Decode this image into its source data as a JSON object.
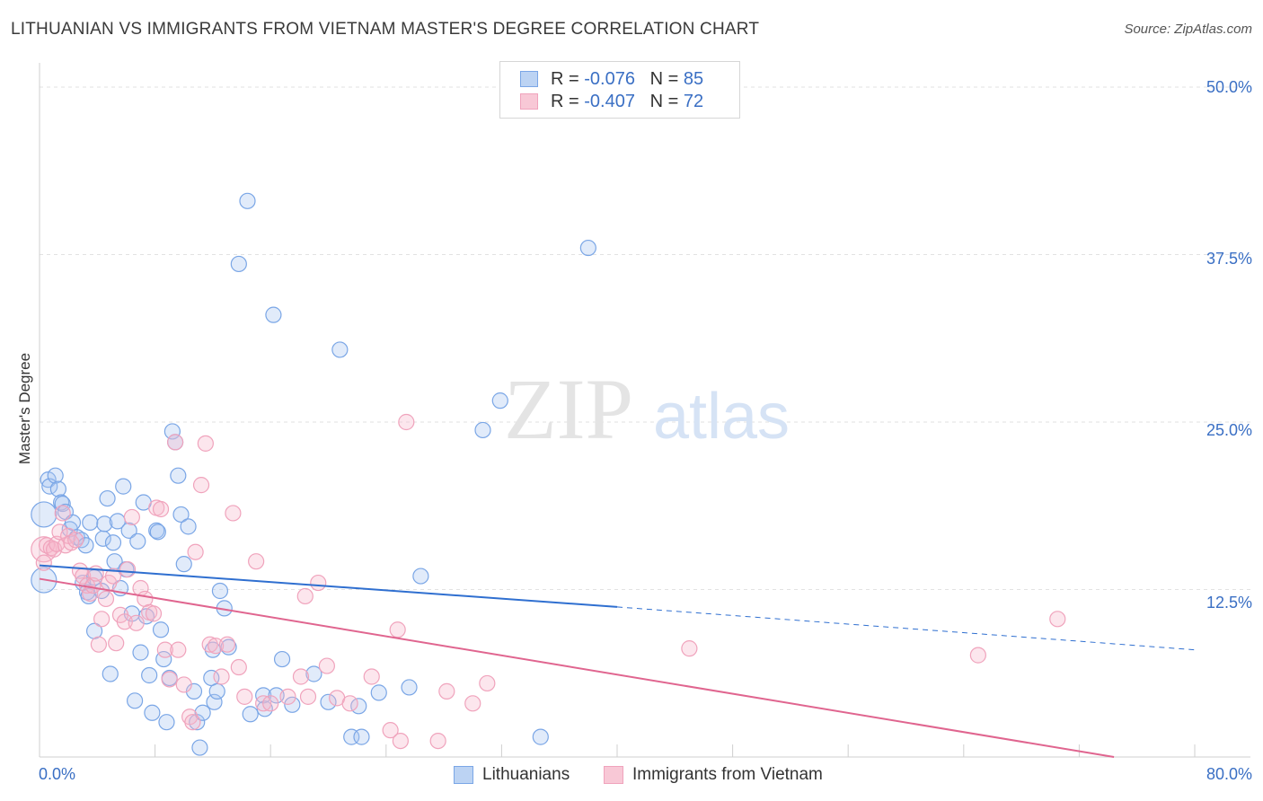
{
  "title": "LITHUANIAN VS IMMIGRANTS FROM VIETNAM MASTER'S DEGREE CORRELATION CHART",
  "source": "Source: ZipAtlas.com",
  "watermark": {
    "zip": "ZIP",
    "atlas": "atlas"
  },
  "legend_top": {
    "row1": {
      "r_label": "R = ",
      "r_value": "-0.076",
      "n_label": "N = ",
      "n_value": "85"
    },
    "row2": {
      "r_label": "R = ",
      "r_value": "-0.407",
      "n_label": "N = ",
      "n_value": "72"
    }
  },
  "chart_data": {
    "type": "scatter",
    "title": "LITHUANIAN VS IMMIGRANTS FROM VIETNAM MASTER'S DEGREE CORRELATION CHART",
    "xlabel": "",
    "ylabel": "Master's Degree",
    "xlim": [
      0,
      80
    ],
    "ylim": [
      0,
      52
    ],
    "x_tick_labels": {
      "min": "0.0%",
      "max": "80.0%"
    },
    "y_ticks": [
      {
        "value": 12.5,
        "label": "12.5%"
      },
      {
        "value": 25.0,
        "label": "25.0%"
      },
      {
        "value": 37.5,
        "label": "37.5%"
      },
      {
        "value": 50.0,
        "label": "50.0%"
      }
    ],
    "grid": true,
    "colors": {
      "blue": "#7aa6e6",
      "blue_line": "#2f6fd0",
      "pink": "#f0a3bc",
      "pink_line": "#e0658f"
    },
    "series": [
      {
        "name": "Lithuanians",
        "color": "#7aa6e6",
        "trend": {
          "x": [
            0,
            40
          ],
          "y": [
            14.3,
            11.2
          ],
          "dashed_x": [
            40,
            80
          ],
          "dashed_y": [
            11.2,
            8.0
          ]
        },
        "points": [
          [
            0.3,
            18.1,
            2
          ],
          [
            0.3,
            13.2,
            2
          ],
          [
            0.6,
            20.7,
            1
          ],
          [
            0.7,
            20.2,
            1
          ],
          [
            1.1,
            21.0,
            1
          ],
          [
            1.3,
            20.0,
            1
          ],
          [
            1.5,
            19.0,
            1
          ],
          [
            1.6,
            18.9,
            1
          ],
          [
            1.8,
            18.3,
            1
          ],
          [
            2.1,
            17.0,
            1
          ],
          [
            2.3,
            17.5,
            1
          ],
          [
            2.6,
            16.4,
            1
          ],
          [
            2.9,
            16.2,
            1
          ],
          [
            3.0,
            13.0,
            1
          ],
          [
            3.2,
            15.8,
            1
          ],
          [
            3.3,
            12.3,
            1
          ],
          [
            3.4,
            12.0,
            1
          ],
          [
            3.5,
            17.5,
            1
          ],
          [
            3.8,
            13.4,
            1
          ],
          [
            3.8,
            9.4,
            1
          ],
          [
            4.3,
            12.4,
            1
          ],
          [
            4.4,
            16.3,
            1
          ],
          [
            4.5,
            17.4,
            1
          ],
          [
            4.7,
            19.3,
            1
          ],
          [
            4.9,
            6.2,
            1
          ],
          [
            5.1,
            16.0,
            1
          ],
          [
            5.2,
            14.6,
            1
          ],
          [
            5.4,
            17.6,
            1
          ],
          [
            5.6,
            12.6,
            1
          ],
          [
            5.8,
            20.2,
            1
          ],
          [
            6.0,
            14.0,
            1
          ],
          [
            6.2,
            16.9,
            1
          ],
          [
            6.4,
            10.7,
            1
          ],
          [
            6.6,
            4.2,
            1
          ],
          [
            6.8,
            16.1,
            1
          ],
          [
            7.0,
            7.8,
            1
          ],
          [
            7.2,
            19.0,
            1
          ],
          [
            7.4,
            10.5,
            1
          ],
          [
            7.6,
            6.1,
            1
          ],
          [
            7.8,
            3.3,
            1
          ],
          [
            8.1,
            16.9,
            1
          ],
          [
            8.2,
            16.8,
            1
          ],
          [
            8.4,
            9.5,
            1
          ],
          [
            8.6,
            7.3,
            1
          ],
          [
            8.8,
            2.6,
            1
          ],
          [
            9.0,
            5.9,
            1
          ],
          [
            9.2,
            24.3,
            1
          ],
          [
            9.4,
            23.5,
            1
          ],
          [
            9.6,
            21.0,
            1
          ],
          [
            9.8,
            18.1,
            1
          ],
          [
            10.0,
            14.4,
            1
          ],
          [
            10.3,
            17.2,
            1
          ],
          [
            10.7,
            4.9,
            1
          ],
          [
            10.9,
            2.6,
            1
          ],
          [
            11.1,
            0.7,
            1
          ],
          [
            11.3,
            3.3,
            1
          ],
          [
            11.9,
            5.9,
            1
          ],
          [
            12.1,
            4.1,
            1
          ],
          [
            12.3,
            4.9,
            1
          ],
          [
            12.5,
            12.4,
            1
          ],
          [
            12.8,
            11.1,
            1
          ],
          [
            13.1,
            8.2,
            1
          ],
          [
            13.8,
            36.8,
            1
          ],
          [
            14.4,
            41.5,
            1
          ],
          [
            14.6,
            3.2,
            1
          ],
          [
            15.5,
            4.6,
            1
          ],
          [
            15.6,
            3.6,
            1
          ],
          [
            16.2,
            33.0,
            1
          ],
          [
            16.4,
            4.6,
            1
          ],
          [
            16.8,
            7.3,
            1
          ],
          [
            17.5,
            3.9,
            1
          ],
          [
            19.0,
            6.2,
            1
          ],
          [
            20.0,
            4.1,
            1
          ],
          [
            20.8,
            30.4,
            1
          ],
          [
            21.6,
            1.5,
            1
          ],
          [
            22.1,
            3.8,
            1
          ],
          [
            22.3,
            1.5,
            1
          ],
          [
            23.5,
            4.8,
            1
          ],
          [
            25.6,
            5.2,
            1
          ],
          [
            26.4,
            13.5,
            1
          ],
          [
            30.7,
            24.4,
            1
          ],
          [
            31.9,
            26.6,
            1
          ],
          [
            34.7,
            1.5,
            1
          ],
          [
            38.0,
            38.0,
            1
          ],
          [
            12.0,
            8.0,
            1
          ]
        ]
      },
      {
        "name": "Immigrants from Vietnam",
        "color": "#f0a3bc",
        "trend": {
          "x": [
            0,
            80
          ],
          "y": [
            13.3,
            -1.0
          ]
        },
        "points": [
          [
            0.3,
            15.5,
            2
          ],
          [
            0.3,
            14.5,
            1
          ],
          [
            0.5,
            15.8,
            1
          ],
          [
            0.8,
            15.6,
            1
          ],
          [
            1.0,
            15.5,
            1
          ],
          [
            1.2,
            15.9,
            1
          ],
          [
            1.4,
            16.8,
            1
          ],
          [
            1.6,
            18.2,
            1
          ],
          [
            1.8,
            15.8,
            1
          ],
          [
            2.0,
            16.5,
            1
          ],
          [
            2.2,
            16.0,
            1
          ],
          [
            2.5,
            16.2,
            1
          ],
          [
            2.8,
            13.9,
            1
          ],
          [
            3.0,
            13.5,
            1
          ],
          [
            3.3,
            12.8,
            1
          ],
          [
            3.5,
            12.2,
            1
          ],
          [
            3.7,
            12.8,
            1
          ],
          [
            3.9,
            13.7,
            1
          ],
          [
            4.1,
            8.4,
            1
          ],
          [
            4.3,
            10.3,
            1
          ],
          [
            4.6,
            11.8,
            1
          ],
          [
            4.8,
            13.0,
            1
          ],
          [
            5.1,
            13.5,
            1
          ],
          [
            5.3,
            8.5,
            1
          ],
          [
            5.6,
            10.6,
            1
          ],
          [
            5.9,
            10.1,
            1
          ],
          [
            6.1,
            14.0,
            1
          ],
          [
            6.4,
            17.9,
            1
          ],
          [
            6.7,
            10.0,
            1
          ],
          [
            7.0,
            12.6,
            1
          ],
          [
            7.3,
            11.8,
            1
          ],
          [
            7.6,
            10.8,
            1
          ],
          [
            7.9,
            10.7,
            1
          ],
          [
            8.1,
            18.6,
            1
          ],
          [
            8.4,
            18.5,
            1
          ],
          [
            8.7,
            8.0,
            1
          ],
          [
            9.0,
            5.8,
            1
          ],
          [
            9.4,
            23.5,
            1
          ],
          [
            9.6,
            8.0,
            1
          ],
          [
            10.0,
            5.4,
            1
          ],
          [
            10.4,
            3.0,
            1
          ],
          [
            10.6,
            2.6,
            1
          ],
          [
            10.8,
            15.3,
            1
          ],
          [
            11.2,
            20.3,
            1
          ],
          [
            11.5,
            23.4,
            1
          ],
          [
            11.8,
            8.4,
            1
          ],
          [
            12.2,
            8.3,
            1
          ],
          [
            12.6,
            6.0,
            1
          ],
          [
            13.0,
            8.4,
            1
          ],
          [
            13.4,
            18.2,
            1
          ],
          [
            13.8,
            6.7,
            1
          ],
          [
            14.2,
            4.5,
            1
          ],
          [
            15.0,
            14.6,
            1
          ],
          [
            15.5,
            4.0,
            1
          ],
          [
            16.0,
            4.0,
            1
          ],
          [
            17.2,
            4.5,
            1
          ],
          [
            18.1,
            6.0,
            1
          ],
          [
            18.4,
            12.0,
            1
          ],
          [
            18.6,
            4.5,
            1
          ],
          [
            19.3,
            13.0,
            1
          ],
          [
            19.9,
            6.8,
            1
          ],
          [
            20.6,
            4.4,
            1
          ],
          [
            21.5,
            4.0,
            1
          ],
          [
            23.0,
            6.0,
            1
          ],
          [
            24.3,
            2.0,
            1
          ],
          [
            24.8,
            9.5,
            1
          ],
          [
            25.0,
            1.2,
            1
          ],
          [
            25.4,
            25.0,
            1
          ],
          [
            27.6,
            1.2,
            1
          ],
          [
            28.2,
            4.9,
            1
          ],
          [
            31.0,
            5.5,
            1
          ],
          [
            30.0,
            4.0,
            1
          ],
          [
            45.0,
            8.1,
            1
          ],
          [
            65.0,
            7.6,
            1
          ],
          [
            70.5,
            10.3,
            1
          ]
        ]
      }
    ]
  },
  "legend_bottom": {
    "item1": "Lithuanians",
    "item2": "Immigrants from Vietnam"
  }
}
